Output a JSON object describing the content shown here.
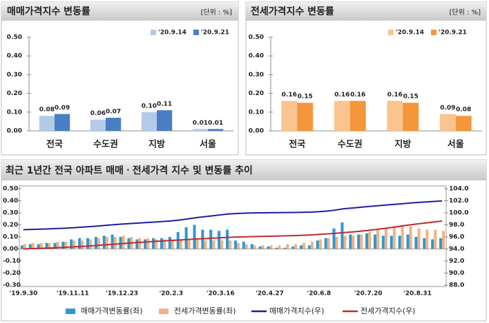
{
  "chart_data": [
    {
      "type": "bar",
      "title": "매매가격지수 변동률",
      "unit": "[단위 : %]",
      "categories": [
        "전국",
        "수도권",
        "지방",
        "서울"
      ],
      "series": [
        {
          "name": "'20.9.14",
          "color": "#b4cbe8",
          "values": [
            0.08,
            0.06,
            0.1,
            0.01
          ],
          "value_labels": [
            "0.08",
            "0.06",
            "0.10",
            "0.01"
          ]
        },
        {
          "name": "'20.9.21",
          "color": "#4a7ec4",
          "values": [
            0.09,
            0.07,
            0.11,
            0.01
          ],
          "value_labels": [
            "0.09",
            "0.07",
            "0.11",
            "0.01"
          ]
        }
      ],
      "ylim": [
        0,
        0.5
      ],
      "yticks": [
        {
          "value": 0,
          "label": "0.00"
        },
        {
          "value": 0.1,
          "label": "0.10"
        },
        {
          "value": 0.2,
          "label": "0.20"
        },
        {
          "value": 0.3,
          "label": "0.30"
        },
        {
          "value": 0.4,
          "label": "0.40"
        },
        {
          "value": 0.5,
          "label": "0.50"
        }
      ],
      "grid": false
    },
    {
      "type": "bar",
      "title": "전세가격지수 변동률",
      "unit": "[단위 : %]",
      "categories": [
        "전국",
        "수도권",
        "지방",
        "서울"
      ],
      "series": [
        {
          "name": "'20.9.14",
          "color": "#fac48f",
          "values": [
            0.16,
            0.16,
            0.16,
            0.09
          ],
          "value_labels": [
            "0.16",
            "0.16",
            "0.16",
            "0.09"
          ]
        },
        {
          "name": "'20.9.21",
          "color": "#f5963b",
          "values": [
            0.15,
            0.16,
            0.15,
            0.08
          ],
          "value_labels": [
            "0.15",
            "0.16",
            "0.15",
            "0.08"
          ]
        }
      ],
      "ylim": [
        0,
        0.5
      ],
      "yticks": [
        {
          "value": 0,
          "label": "0.00"
        },
        {
          "value": 0.1,
          "label": "0.10"
        },
        {
          "value": 0.2,
          "label": "0.20"
        },
        {
          "value": 0.3,
          "label": "0.30"
        },
        {
          "value": 0.4,
          "label": "0.40"
        },
        {
          "value": 0.5,
          "label": "0.50"
        }
      ],
      "grid": false
    },
    {
      "type": "combo",
      "title": "최근 1년간 전국 아파트 매매ㆍ전세가격 지수 및 변동률 추이",
      "categories": [
        "'19.9.30",
        null,
        null,
        null,
        null,
        null,
        "'19.11.11",
        null,
        null,
        null,
        null,
        null,
        "'19.12.23",
        null,
        null,
        null,
        null,
        null,
        "'20.2.3",
        null,
        null,
        null,
        null,
        null,
        "'20.3.16",
        null,
        null,
        null,
        null,
        null,
        "'20.4.27",
        null,
        null,
        null,
        null,
        null,
        "'20.6.8",
        null,
        null,
        null,
        null,
        null,
        "'20.7.20",
        null,
        null,
        null,
        null,
        null,
        "'20.8.31",
        null,
        null,
        null
      ],
      "series": [
        {
          "name": "매매가격변동률(좌)",
          "type": "bar",
          "axis": "y",
          "color": "#2f98cf",
          "values": [
            0.03,
            0.04,
            0.04,
            0.05,
            0.05,
            0.06,
            0.08,
            0.09,
            0.09,
            0.1,
            0.11,
            0.12,
            0.1,
            0.09,
            0.08,
            0.08,
            0.09,
            0.09,
            0.1,
            0.14,
            0.18,
            0.2,
            0.16,
            0.16,
            0.15,
            0.16,
            0.07,
            0.06,
            0.04,
            0.02,
            0.02,
            0.01,
            0.01,
            0.02,
            0.03,
            0.03,
            0.07,
            0.09,
            0.17,
            0.22,
            0.12,
            0.12,
            0.13,
            0.12,
            0.11,
            0.11,
            0.11,
            0.12,
            0.1,
            0.09,
            0.08,
            0.09
          ]
        },
        {
          "name": "전세가격변동률(좌)",
          "type": "bar",
          "axis": "y",
          "color": "#f4b183",
          "values": [
            0.04,
            0.05,
            0.05,
            0.05,
            0.06,
            0.06,
            0.07,
            0.07,
            0.08,
            0.09,
            0.1,
            0.1,
            0.11,
            0.1,
            0.09,
            0.09,
            0.08,
            0.08,
            0.08,
            0.08,
            0.08,
            0.08,
            0.07,
            0.07,
            0.07,
            0.07,
            0.05,
            0.04,
            0.03,
            0.03,
            0.03,
            0.03,
            0.04,
            0.04,
            0.05,
            0.06,
            0.08,
            0.09,
            0.1,
            0.11,
            0.11,
            0.12,
            0.14,
            0.16,
            0.17,
            0.19,
            0.2,
            0.19,
            0.17,
            0.16,
            0.16,
            0.15
          ]
        },
        {
          "name": "매매가격지수(우)",
          "type": "line",
          "axis": "y2",
          "color": "#1b1ba8",
          "values": [
            97.2,
            97.24,
            97.28,
            97.33,
            97.38,
            97.44,
            97.52,
            97.61,
            97.7,
            97.8,
            97.91,
            98.03,
            98.13,
            98.22,
            98.3,
            98.38,
            98.47,
            98.56,
            98.66,
            98.8,
            98.98,
            99.18,
            99.34,
            99.5,
            99.65,
            99.81,
            99.88,
            99.94,
            99.98,
            100.0,
            100.02,
            100.03,
            100.04,
            100.06,
            100.09,
            100.12,
            100.19,
            100.28,
            100.45,
            100.67,
            100.79,
            100.91,
            101.04,
            101.16,
            101.27,
            101.38,
            101.49,
            101.61,
            101.71,
            101.8,
            101.88,
            101.97
          ]
        },
        {
          "name": "전세가격지수(우)",
          "type": "line",
          "axis": "y2",
          "color": "#c0282d",
          "values": [
            94.0,
            94.05,
            94.1,
            94.15,
            94.21,
            94.27,
            94.34,
            94.41,
            94.49,
            94.58,
            94.68,
            94.78,
            94.89,
            94.99,
            95.08,
            95.17,
            95.25,
            95.33,
            95.41,
            95.49,
            95.57,
            95.65,
            95.72,
            95.79,
            95.86,
            95.93,
            95.98,
            96.02,
            96.05,
            96.08,
            96.11,
            96.14,
            96.18,
            96.22,
            96.27,
            96.33,
            96.41,
            96.5,
            96.6,
            96.71,
            96.82,
            96.94,
            97.08,
            97.24,
            97.41,
            97.6,
            97.8,
            97.99,
            98.16,
            98.32,
            98.48,
            98.63
          ]
        }
      ],
      "ylim": [
        -0.3,
        0.5
      ],
      "yticks": [
        {
          "value": -0.3,
          "label": "-0.30"
        },
        {
          "value": -0.2,
          "label": "-0.20"
        },
        {
          "value": -0.1,
          "label": "-0.10"
        },
        {
          "value": 0,
          "label": "0.00"
        },
        {
          "value": 0.1,
          "label": "0.10"
        },
        {
          "value": 0.2,
          "label": "0.20"
        },
        {
          "value": 0.3,
          "label": "0.30"
        },
        {
          "value": 0.4,
          "label": "0.40"
        },
        {
          "value": 0.5,
          "label": "0.50"
        }
      ],
      "y2lim": [
        88,
        104
      ],
      "y2ticks": [
        {
          "value": 88,
          "label": "88.0"
        },
        {
          "value": 90,
          "label": "90.0"
        },
        {
          "value": 92,
          "label": "92.0"
        },
        {
          "value": 94,
          "label": "94.0"
        },
        {
          "value": 96,
          "label": "96.0"
        },
        {
          "value": 98,
          "label": "98.0"
        },
        {
          "value": 100,
          "label": "100.0"
        },
        {
          "value": 102,
          "label": "102.0"
        },
        {
          "value": 104,
          "label": "104.0"
        }
      ],
      "grid": false
    }
  ]
}
